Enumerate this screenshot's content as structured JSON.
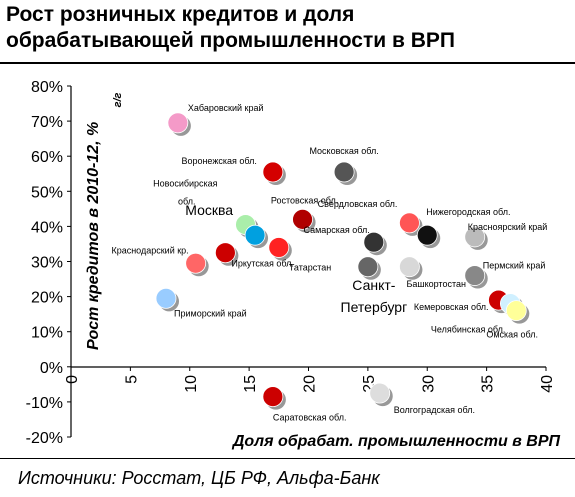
{
  "title_lines": [
    "Рост розничных кредитов и доля",
    "обрабатывающей промышленности в ВРП"
  ],
  "source": "Источники: Росстат, ЦБ РФ, Альфа-Банк",
  "chart_data": {
    "type": "scatter",
    "xlabel": "Доля обрабат. промышленности  в ВРП",
    "ylabel": "Рост кредитов в 2010-12, %",
    "ylabel_sub": "г/г",
    "xlim": [
      0,
      40
    ],
    "ylim": [
      -20,
      80
    ],
    "x_ticks": [
      "0",
      "5",
      "10",
      "15",
      "20",
      "25",
      "30",
      "35",
      "40"
    ],
    "y_ticks": [
      "-20%",
      "-10%",
      "0%",
      "10%",
      "20%",
      "30%",
      "40%",
      "50%",
      "60%",
      "70%",
      "80%"
    ],
    "points": [
      {
        "name": "Хабаровский край",
        "x": 9.0,
        "y": 69.5,
        "color": "#f49ac8",
        "label_size": "small"
      },
      {
        "name": "Воронежская обл.",
        "x": 17.0,
        "y": 55.5,
        "color": "#d40000",
        "label_size": "small"
      },
      {
        "name": "Московская обл.",
        "x": 23.0,
        "y": 55.5,
        "color": "#555555",
        "label_size": "small"
      },
      {
        "name": "Новосибирская обл.",
        "x": 14.7,
        "y": 40.5,
        "color": "#aaeeaa",
        "label_size": "small"
      },
      {
        "name": "Москва",
        "x": 15.5,
        "y": 37.5,
        "color": "#00a0e0",
        "label_size": "big"
      },
      {
        "name": "Ростовская обл.",
        "x": 19.5,
        "y": 42.0,
        "color": "#b00000",
        "label_size": "small"
      },
      {
        "name": "Свердловская обл.",
        "x": 28.5,
        "y": 41.0,
        "color": "#ff5555",
        "label_size": "small"
      },
      {
        "name": "Нижегородская обл.",
        "x": 30.0,
        "y": 37.5,
        "color": "#111111",
        "label_size": "small"
      },
      {
        "name": "Красноярский край",
        "x": 34.0,
        "y": 37.0,
        "color": "#bbbbbb",
        "label_size": "small"
      },
      {
        "name": "Самарская обл.",
        "x": 25.5,
        "y": 35.5,
        "color": "#333333",
        "label_size": "small"
      },
      {
        "name": "Краснодарский кр.",
        "x": 10.5,
        "y": 29.5,
        "color": "#ff6666",
        "label_size": "small"
      },
      {
        "name": "Иркутская обл.",
        "x": 13.0,
        "y": 32.5,
        "color": "#cc0000",
        "label_size": "small"
      },
      {
        "name": "Татарстан",
        "x": 17.5,
        "y": 34.0,
        "color": "#ff2222",
        "label_size": "small"
      },
      {
        "name": "Санкт-Петербург",
        "x": 25.0,
        "y": 28.5,
        "color": "#666666",
        "label_size": "big"
      },
      {
        "name": "Башкортостан",
        "x": 28.5,
        "y": 28.5,
        "color": "#d8d8d8",
        "label_size": "small"
      },
      {
        "name": "Пермский край",
        "x": 34.0,
        "y": 26.0,
        "color": "#888888",
        "label_size": "small"
      },
      {
        "name": "Приморский край",
        "x": 8.0,
        "y": 19.5,
        "color": "#99ccff",
        "label_size": "small"
      },
      {
        "name": "Кемеровская обл.",
        "x": 36.0,
        "y": 19.0,
        "color": "#cc0000",
        "label_size": "small"
      },
      {
        "name": "Челябинская обл.",
        "x": 37.0,
        "y": 18.0,
        "color": "#d0f0ff",
        "label_size": "small"
      },
      {
        "name": "Омская обл.",
        "x": 37.5,
        "y": 16.0,
        "color": "#ffff99",
        "label_size": "small"
      },
      {
        "name": "Саратовская обл.",
        "x": 17.0,
        "y": -8.5,
        "color": "#cc0000",
        "label_size": "small"
      },
      {
        "name": "Волгоградская обл.",
        "x": 26.0,
        "y": -7.5,
        "color": "#dddddd",
        "label_size": "small"
      }
    ]
  }
}
